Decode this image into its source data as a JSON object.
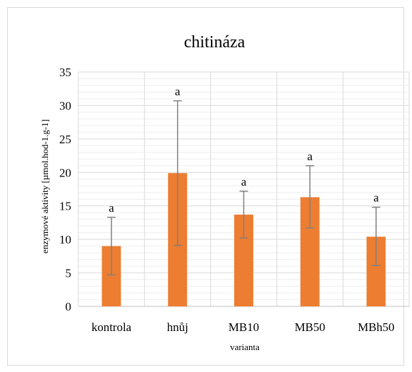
{
  "chart_data": {
    "type": "bar",
    "title": "chitináza",
    "xlabel": "varianta",
    "ylabel": "enzymové aktivity [µmol.hod-1.g-1]",
    "categories": [
      "kontrola",
      "hnůj",
      "MB10",
      "MB50",
      "MBh50"
    ],
    "values": [
      9.0,
      19.9,
      13.7,
      16.3,
      10.4
    ],
    "error_low": [
      4.7,
      9.1,
      10.2,
      11.7,
      6.1
    ],
    "error_high": [
      13.3,
      30.7,
      17.2,
      21.0,
      14.8
    ],
    "significance_labels": [
      "a",
      "a",
      "a",
      "a",
      "a"
    ],
    "ylim": [
      0,
      35
    ],
    "yticks": [
      0,
      5,
      10,
      15,
      20,
      25,
      30,
      35
    ],
    "grid": true,
    "legend": "none",
    "colors": {
      "bar": "#ed7d31",
      "error_bar": "#808080",
      "major_grid": "#d9d9d9",
      "minor_grid": "#eeeeee",
      "text": "#000000"
    }
  }
}
